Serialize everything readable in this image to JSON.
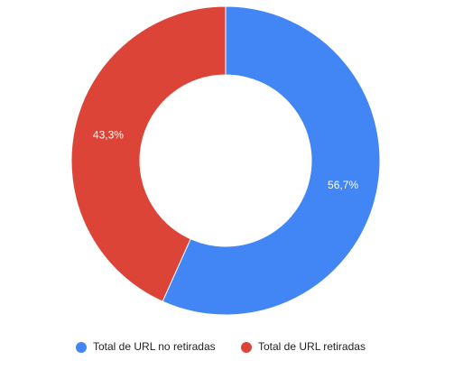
{
  "chart_data": {
    "type": "pie",
    "categories": [
      "Total de URL no retiradas",
      "Total de URL retiradas"
    ],
    "values": [
      56.7,
      43.3
    ],
    "value_labels": [
      "56,7%",
      "43,3%"
    ],
    "colors": [
      "#4285f4",
      "#db4437"
    ],
    "hole": true,
    "legend": "bottom"
  }
}
